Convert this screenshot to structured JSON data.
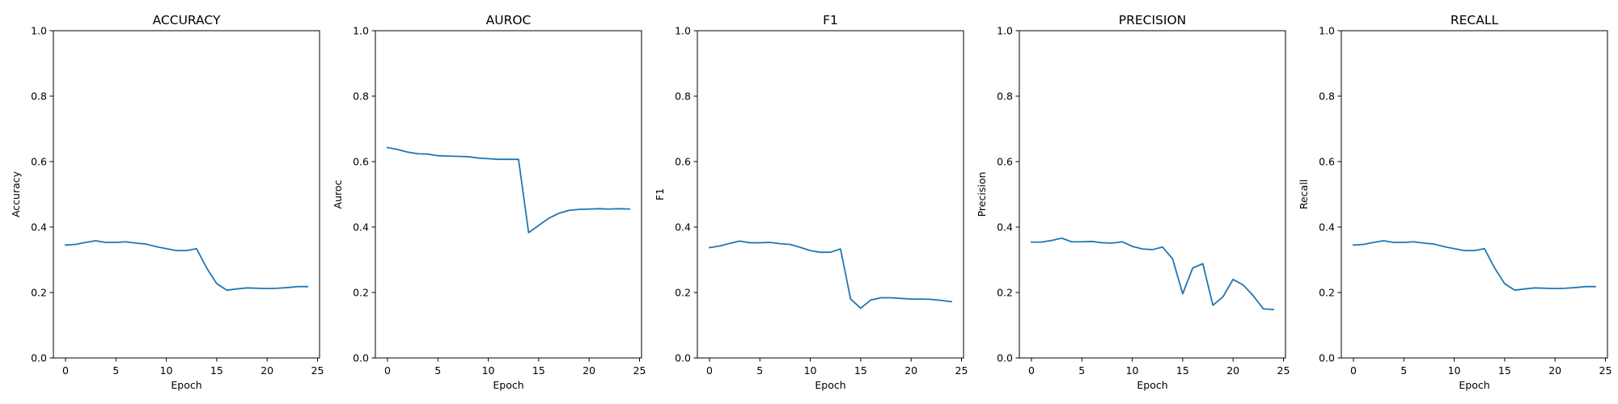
{
  "line_color": "#1f77b4",
  "chart_data": [
    {
      "type": "line",
      "title": "ACCURACY",
      "xlabel": "Epoch",
      "ylabel": "Accuracy",
      "xlim": [
        -1.2,
        25.2
      ],
      "ylim": [
        0.0,
        1.0
      ],
      "xticks": [
        0,
        5,
        10,
        15,
        20,
        25
      ],
      "yticks": [
        0.0,
        0.2,
        0.4,
        0.6,
        0.8,
        1.0
      ],
      "grid": false,
      "series": [
        {
          "x": [
            0,
            1,
            2,
            3,
            4,
            5,
            6,
            7,
            8,
            9,
            10,
            11,
            12,
            13,
            14,
            15,
            16,
            17,
            18,
            19,
            20,
            21,
            22,
            23,
            24
          ],
          "y": [
            0.345,
            0.347,
            0.353,
            0.358,
            0.353,
            0.353,
            0.355,
            0.351,
            0.348,
            0.34,
            0.334,
            0.328,
            0.328,
            0.334,
            0.275,
            0.227,
            0.207,
            0.211,
            0.214,
            0.213,
            0.212,
            0.213,
            0.215,
            0.218,
            0.218
          ]
        }
      ]
    },
    {
      "type": "line",
      "title": "AUROC",
      "xlabel": "Epoch",
      "ylabel": "Auroc",
      "xlim": [
        -1.2,
        25.2
      ],
      "ylim": [
        0.0,
        1.0
      ],
      "xticks": [
        0,
        5,
        10,
        15,
        20,
        25
      ],
      "yticks": [
        0.0,
        0.2,
        0.4,
        0.6,
        0.8,
        1.0
      ],
      "grid": false,
      "series": [
        {
          "x": [
            0,
            1,
            2,
            3,
            4,
            5,
            6,
            7,
            8,
            9,
            10,
            11,
            12,
            13,
            14,
            15,
            16,
            17,
            18,
            19,
            20,
            21,
            22,
            23,
            24
          ],
          "y": [
            0.643,
            0.637,
            0.629,
            0.624,
            0.623,
            0.618,
            0.617,
            0.616,
            0.615,
            0.611,
            0.609,
            0.607,
            0.607,
            0.607,
            0.383,
            0.405,
            0.427,
            0.442,
            0.451,
            0.454,
            0.455,
            0.456,
            0.455,
            0.456,
            0.455
          ]
        }
      ]
    },
    {
      "type": "line",
      "title": "F1",
      "xlabel": "Epoch",
      "ylabel": "F1",
      "xlim": [
        -1.2,
        25.2
      ],
      "ylim": [
        0.0,
        1.0
      ],
      "xticks": [
        0,
        5,
        10,
        15,
        20,
        25
      ],
      "yticks": [
        0.0,
        0.2,
        0.4,
        0.6,
        0.8,
        1.0
      ],
      "grid": false,
      "series": [
        {
          "x": [
            0,
            1,
            2,
            3,
            4,
            5,
            6,
            7,
            8,
            9,
            10,
            11,
            12,
            13,
            14,
            15,
            16,
            17,
            18,
            19,
            20,
            21,
            22,
            23,
            24
          ],
          "y": [
            0.337,
            0.342,
            0.35,
            0.357,
            0.352,
            0.352,
            0.353,
            0.349,
            0.347,
            0.338,
            0.328,
            0.323,
            0.323,
            0.333,
            0.18,
            0.152,
            0.177,
            0.184,
            0.184,
            0.182,
            0.18,
            0.18,
            0.179,
            0.176,
            0.172
          ]
        }
      ]
    },
    {
      "type": "line",
      "title": "PRECISION",
      "xlabel": "Epoch",
      "ylabel": "Precision",
      "xlim": [
        -1.2,
        25.2
      ],
      "ylim": [
        0.0,
        1.0
      ],
      "xticks": [
        0,
        5,
        10,
        15,
        20,
        25
      ],
      "yticks": [
        0.0,
        0.2,
        0.4,
        0.6,
        0.8,
        1.0
      ],
      "grid": false,
      "series": [
        {
          "x": [
            0,
            1,
            2,
            3,
            4,
            5,
            6,
            7,
            8,
            9,
            10,
            11,
            12,
            13,
            14,
            15,
            16,
            17,
            18,
            19,
            20,
            21,
            22,
            23,
            24
          ],
          "y": [
            0.354,
            0.354,
            0.359,
            0.366,
            0.355,
            0.355,
            0.356,
            0.352,
            0.351,
            0.355,
            0.341,
            0.333,
            0.331,
            0.339,
            0.303,
            0.196,
            0.275,
            0.288,
            0.161,
            0.187,
            0.24,
            0.223,
            0.19,
            0.15,
            0.148
          ]
        }
      ]
    },
    {
      "type": "line",
      "title": "RECALL",
      "xlabel": "Epoch",
      "ylabel": "Recall",
      "xlim": [
        -1.2,
        25.2
      ],
      "ylim": [
        0.0,
        1.0
      ],
      "xticks": [
        0,
        5,
        10,
        15,
        20,
        25
      ],
      "yticks": [
        0.0,
        0.2,
        0.4,
        0.6,
        0.8,
        1.0
      ],
      "grid": false,
      "series": [
        {
          "x": [
            0,
            1,
            2,
            3,
            4,
            5,
            6,
            7,
            8,
            9,
            10,
            11,
            12,
            13,
            14,
            15,
            16,
            17,
            18,
            19,
            20,
            21,
            22,
            23,
            24
          ],
          "y": [
            0.345,
            0.347,
            0.353,
            0.358,
            0.353,
            0.353,
            0.355,
            0.351,
            0.348,
            0.34,
            0.334,
            0.328,
            0.328,
            0.334,
            0.275,
            0.227,
            0.207,
            0.211,
            0.214,
            0.213,
            0.212,
            0.213,
            0.215,
            0.218,
            0.218
          ]
        }
      ]
    }
  ]
}
